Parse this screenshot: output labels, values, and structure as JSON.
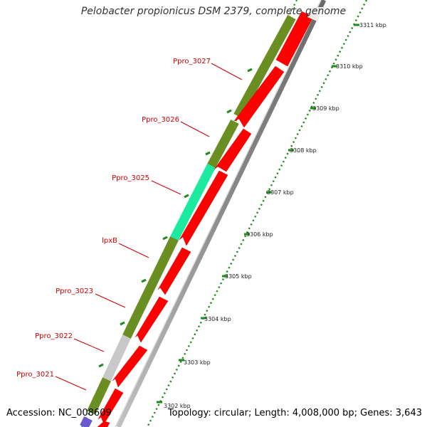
{
  "title": "Pelobacter propionicus DSM 2379, complete genome",
  "footer": {
    "accession": "Accession: NC_008609",
    "topology": "Topology: circular; Length: 4,008,000 bp; Genes: 3,643"
  },
  "gene_labels": [
    "Ppro_3027",
    "Ppro_3026",
    "Ppro_3025",
    "lpxB",
    "Ppro_3023",
    "Ppro_3022",
    "Ppro_3021"
  ],
  "ticks": [
    "3311 kbp",
    "3310 kbp",
    "3309 kbp",
    "3308 kbp",
    "3307 kbp",
    "3306 kbp",
    "3305 kbp",
    "3304 kbp",
    "3303 kbp",
    "3302 kbp"
  ],
  "colors": {
    "olive_cds": "#6b8e23",
    "highlight_cds": "#1de9a0",
    "grey_cds": "#c8c8c8",
    "red_cds": "#ff0000",
    "backbone": "#8c8c8c",
    "ticks": "#1f8a1f",
    "label_text": "#cc0000"
  }
}
